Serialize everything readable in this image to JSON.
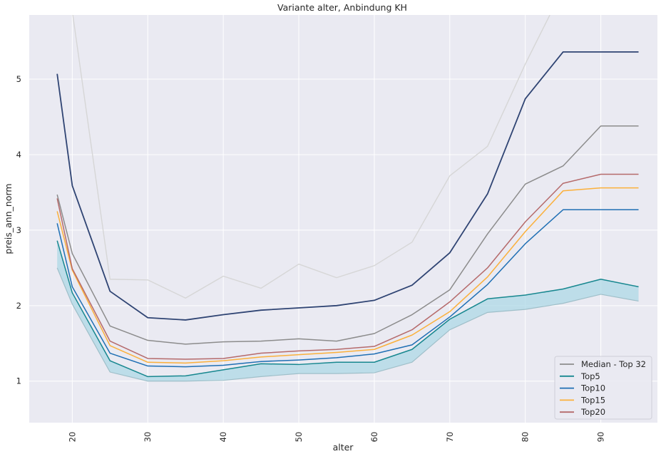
{
  "chart_data": {
    "type": "line",
    "title": "Variante alter, Anbindung KH",
    "xlabel": "alter",
    "ylabel": "preis_ann_norm",
    "xlim": [
      14.3,
      97.5
    ],
    "ylim": [
      0.45,
      5.85
    ],
    "xticks": [
      20,
      30,
      40,
      50,
      60,
      70,
      80,
      90
    ],
    "yticks": [
      1,
      2,
      3,
      4,
      5
    ],
    "grid": true,
    "legend_position": "bottom-right",
    "x": [
      18,
      20,
      25,
      30,
      35,
      40,
      45,
      50,
      55,
      60,
      65,
      70,
      75,
      80,
      85,
      90,
      95
    ],
    "band": {
      "color": "#add8e6",
      "lower": [
        2.5,
        2.02,
        1.12,
        1.0,
        1.0,
        1.01,
        1.06,
        1.1,
        1.1,
        1.11,
        1.25,
        1.68,
        1.91,
        1.95,
        2.03,
        2.15,
        2.06
      ],
      "upper": [
        2.86,
        2.17,
        1.27,
        1.06,
        1.07,
        1.15,
        1.23,
        1.22,
        1.25,
        1.25,
        1.42,
        1.82,
        2.09,
        2.14,
        2.22,
        2.35,
        2.25
      ]
    },
    "series": [
      {
        "id": "light-grey",
        "color": "#d6d6d6",
        "width": 1.4,
        "values": [
          6.3,
          5.9,
          2.35,
          2.34,
          2.1,
          2.39,
          2.23,
          2.55,
          2.37,
          2.53,
          2.84,
          3.72,
          4.11,
          5.2,
          6.2,
          null,
          null
        ]
      },
      {
        "id": "dark-navy",
        "color": "#2f4473",
        "width": 1.8,
        "values": [
          5.07,
          3.59,
          2.19,
          1.84,
          1.81,
          1.88,
          1.94,
          1.97,
          2.0,
          2.07,
          2.27,
          2.7,
          3.48,
          4.74,
          5.36,
          5.36,
          5.36
        ]
      },
      {
        "name": "Median - Top 32",
        "color": "#8c8c8c",
        "width": 1.5,
        "values": [
          3.47,
          2.69,
          1.73,
          1.54,
          1.49,
          1.52,
          1.53,
          1.56,
          1.53,
          1.63,
          1.88,
          2.21,
          2.95,
          3.61,
          3.85,
          4.38,
          4.38
        ]
      },
      {
        "name": "Top5",
        "color": "#17878f",
        "width": 1.5,
        "values": [
          2.86,
          2.17,
          1.27,
          1.06,
          1.07,
          1.15,
          1.23,
          1.22,
          1.25,
          1.25,
          1.42,
          1.82,
          2.09,
          2.14,
          2.22,
          2.35,
          2.25
        ]
      },
      {
        "name": "Top10",
        "color": "#1f6fb4",
        "width": 1.5,
        "values": [
          3.09,
          2.25,
          1.37,
          1.2,
          1.19,
          1.21,
          1.26,
          1.28,
          1.31,
          1.36,
          1.48,
          1.85,
          2.28,
          2.82,
          3.27,
          3.27,
          3.27
        ]
      },
      {
        "name": "Top15",
        "color": "#fbb03b",
        "width": 1.5,
        "values": [
          3.25,
          2.47,
          1.47,
          1.25,
          1.24,
          1.27,
          1.32,
          1.35,
          1.38,
          1.42,
          1.61,
          1.92,
          2.38,
          2.98,
          3.52,
          3.56,
          3.56
        ]
      },
      {
        "name": "Top20",
        "color": "#b56a6b",
        "width": 1.5,
        "values": [
          3.42,
          2.49,
          1.53,
          1.3,
          1.29,
          1.3,
          1.37,
          1.4,
          1.42,
          1.46,
          1.68,
          2.05,
          2.5,
          3.11,
          3.62,
          3.74,
          3.74
        ]
      }
    ],
    "legend": [
      "Median - Top 32",
      "Top5",
      "Top10",
      "Top15",
      "Top20"
    ],
    "colors": {
      "plot_background": "#eaeaf2",
      "grid": "#ffffff"
    }
  }
}
